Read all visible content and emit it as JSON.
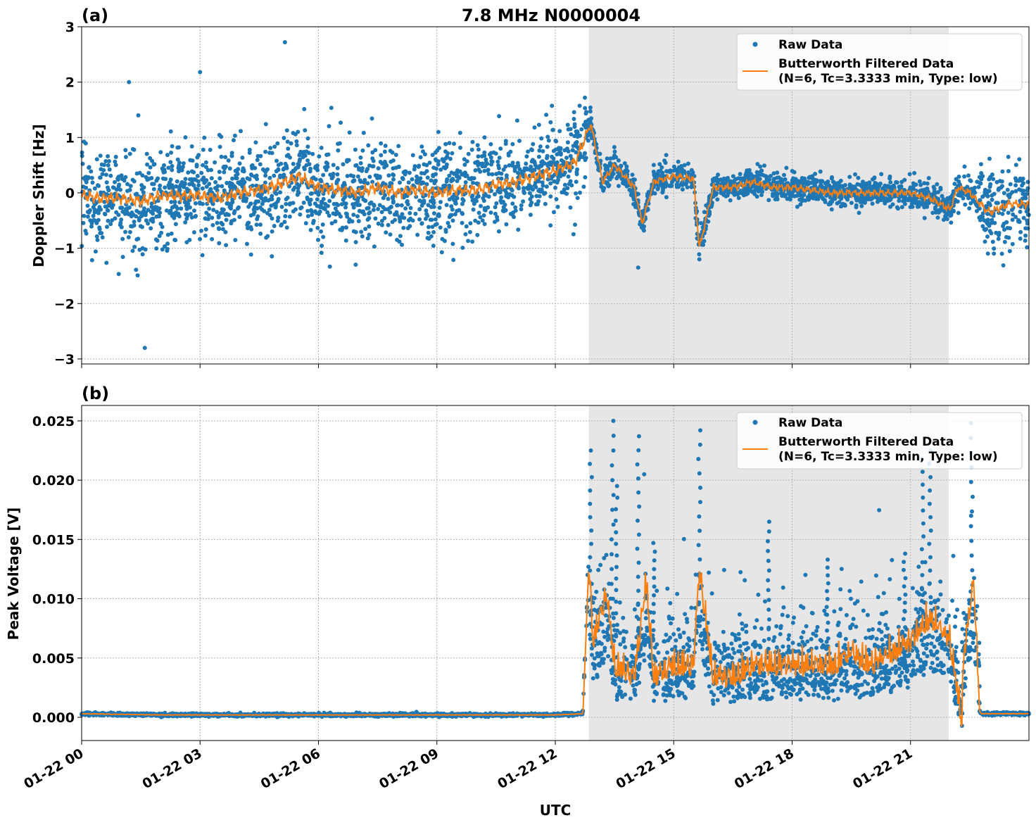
{
  "title": "7.8 MHz N0000004",
  "colors": {
    "raw": "#1f77b4",
    "filtered": "#ff7f0e",
    "shade": "#e6e6e6"
  },
  "chart_data": [
    {
      "type": "scatter+line",
      "panel_label": "(a)",
      "ylabel": "Doppler Shift [Hz]",
      "ylim": [
        -3.09,
        3.0
      ],
      "xlim": [
        "01-22 00:00",
        "01-23 00:00"
      ],
      "grid": true,
      "legend_position": "top-right",
      "yticks": [
        3,
        2,
        1,
        0,
        -1,
        -2,
        -3
      ],
      "ytick_labels": [
        "3",
        "2",
        "1",
        "0",
        "−1",
        "−2",
        "−3"
      ],
      "shaded_span": [
        "01-22 12:51",
        "01-22 21:58"
      ],
      "legend": [
        "Raw Data",
        "Butterworth Filtered Data",
        "(N=6, Tc=3.3333 min, Type: low)"
      ],
      "series": [
        {
          "name": "Butterworth Filtered Data",
          "kind": "line",
          "x_hours": [
            0,
            0.5,
            1,
            1.5,
            2,
            2.5,
            3,
            3.5,
            4,
            4.5,
            5,
            5.5,
            6,
            6.5,
            7,
            7.5,
            8,
            8.5,
            9,
            9.5,
            10,
            10.5,
            11,
            11.5,
            12,
            12.5,
            12.9,
            13.2,
            13.5,
            14,
            14.2,
            14.5,
            15,
            15.5,
            15.65,
            16,
            16.5,
            17,
            17.5,
            18,
            18.5,
            19,
            19.5,
            20,
            20.5,
            21,
            21.5,
            22,
            22.2,
            22.5,
            22.9,
            23,
            23.5,
            24
          ],
          "values": [
            -0.05,
            -0.1,
            -0.1,
            -0.15,
            -0.05,
            -0.05,
            -0.05,
            -0.1,
            0.0,
            0.05,
            0.15,
            0.3,
            0.1,
            0.05,
            0.0,
            0.1,
            0.0,
            0.05,
            0.0,
            0.05,
            0.05,
            0.15,
            0.2,
            0.3,
            0.4,
            0.55,
            1.25,
            0.2,
            0.5,
            0.1,
            -0.55,
            0.2,
            0.3,
            0.25,
            -1.0,
            0.1,
            0.1,
            0.2,
            0.1,
            0.1,
            0.05,
            0.0,
            0.0,
            0.0,
            0.0,
            0.0,
            -0.1,
            -0.3,
            0.1,
            0.0,
            -0.3,
            -0.35,
            -0.2,
            -0.2
          ]
        },
        {
          "name": "Raw Data",
          "kind": "scatter",
          "spread_segments": [
            {
              "from_hours": 0,
              "to_hours": 12.8,
              "half_width_hz": 0.9
            },
            {
              "from_hours": 12.8,
              "to_hours": 22.7,
              "half_width_hz": 0.25
            },
            {
              "from_hours": 22.7,
              "to_hours": 24,
              "half_width_hz": 0.7
            }
          ],
          "outliers": [
            [
              1.6,
              -2.8
            ],
            [
              5.15,
              2.72
            ],
            [
              3.0,
              2.18
            ],
            [
              1.2,
              2.0
            ],
            [
              14.1,
              -1.35
            ],
            [
              15.65,
              -1.2
            ]
          ]
        }
      ]
    },
    {
      "type": "scatter+line",
      "panel_label": "(b)",
      "ylabel": "Peak Voltage [V]",
      "xlabel": "UTC",
      "ylim": [
        -0.00196,
        0.0263
      ],
      "xlim": [
        "01-22 00:00",
        "01-23 00:00"
      ],
      "grid": true,
      "legend_position": "top-right",
      "yticks": [
        0.025,
        0.02,
        0.015,
        0.01,
        0.005,
        0.0
      ],
      "ytick_labels": [
        "0.025",
        "0.020",
        "0.015",
        "0.010",
        "0.005",
        "0.000"
      ],
      "xtick_labels": [
        "01-22 00",
        "01-22 03",
        "01-22 06",
        "01-22 09",
        "01-22 12",
        "01-22 15",
        "01-22 18",
        "01-22 21"
      ],
      "shaded_span": [
        "01-22 12:51",
        "01-22 21:58"
      ],
      "legend": [
        "Raw Data",
        "Butterworth Filtered Data",
        "(N=6, Tc=3.3333 min, Type: low)"
      ],
      "series": [
        {
          "name": "Butterworth Filtered Data",
          "kind": "line",
          "x_hours": [
            0,
            2,
            4,
            6,
            8,
            10,
            12,
            12.7,
            12.85,
            12.95,
            13.3,
            13.5,
            14,
            14.3,
            14.5,
            15,
            15.5,
            15.65,
            16,
            16.5,
            17,
            17.5,
            18,
            18.5,
            19,
            19.5,
            20,
            20.5,
            21,
            21.5,
            22,
            22.3,
            22.35,
            22.6,
            22.75,
            22.8,
            23,
            23.5,
            24
          ],
          "values": [
            0.0003,
            0.0002,
            0.0002,
            0.0002,
            0.0002,
            0.0002,
            0.0002,
            0.0003,
            0.013,
            0.006,
            0.01,
            0.004,
            0.003,
            0.011,
            0.003,
            0.004,
            0.004,
            0.012,
            0.003,
            0.003,
            0.004,
            0.004,
            0.004,
            0.004,
            0.004,
            0.005,
            0.004,
            0.005,
            0.006,
            0.008,
            0.006,
            -0.0007,
            0.005,
            0.011,
            0.0005,
            0.0003,
            0.0003,
            0.0003,
            0.0003
          ]
        },
        {
          "name": "Raw Data",
          "kind": "scatter",
          "spread_segments": [
            {
              "from_hours": 0,
              "to_hours": 12.8,
              "half_width_v": 0.0002
            },
            {
              "from_hours": 12.8,
              "to_hours": 22.75,
              "half_width_v": 0.004
            },
            {
              "from_hours": 22.75,
              "to_hours": 24,
              "half_width_v": 0.0002
            }
          ],
          "spikes": [
            [
              12.9,
              0.0225
            ],
            [
              13.45,
              0.025
            ],
            [
              13.55,
              0.0195
            ],
            [
              14.1,
              0.0237
            ],
            [
              14.5,
              0.0147
            ],
            [
              15.65,
              0.0242
            ],
            [
              17.4,
              0.0165
            ],
            [
              18.9,
              0.0133
            ],
            [
              20.85,
              0.0138
            ],
            [
              21.3,
              0.0218
            ],
            [
              21.5,
              0.0225
            ],
            [
              22.55,
              0.0248
            ]
          ]
        }
      ]
    }
  ]
}
